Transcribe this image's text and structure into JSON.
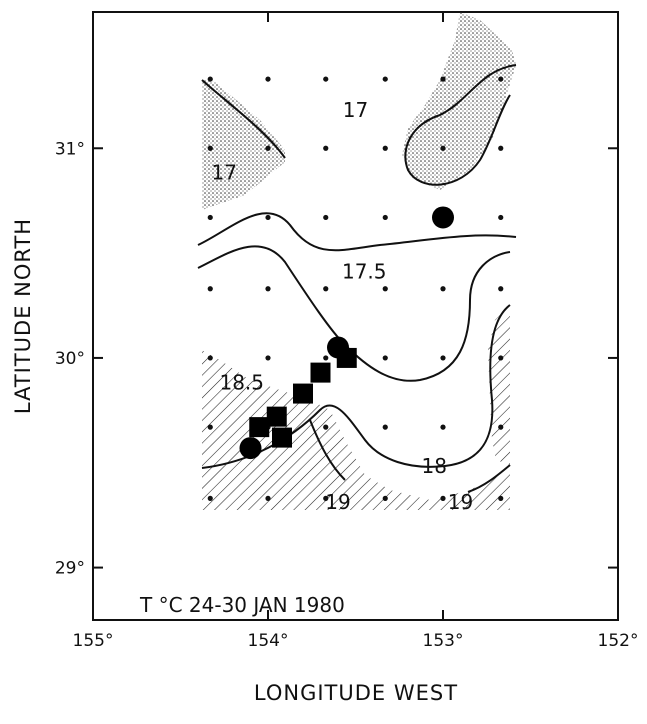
{
  "chart_data": {
    "type": "contour-map",
    "annotation": "T °C 24-30 JAN 1980",
    "xlabel": "LONGITUDE WEST",
    "ylabel": "LATITUDE NORTH",
    "xlim": [
      155,
      152
    ],
    "ylim": [
      28.75,
      31.65
    ],
    "x_ticks": [
      {
        "value": 155,
        "label": "155°"
      },
      {
        "value": 154,
        "label": "154°"
      },
      {
        "value": 153,
        "label": "153°"
      },
      {
        "value": 152,
        "label": "152°"
      }
    ],
    "y_ticks": [
      {
        "value": 31,
        "label": "31°"
      },
      {
        "value": 30,
        "label": "30°"
      },
      {
        "value": 29,
        "label": "29°"
      }
    ],
    "station_lons": [
      154.33,
      154.0,
      153.67,
      153.33,
      153.0,
      152.67
    ],
    "station_lats": [
      31.33,
      31.0,
      30.67,
      30.33,
      30.0,
      29.67,
      29.33
    ],
    "contours": [
      {
        "value": "17",
        "label": "17",
        "points": [
          [
            154.35,
            30.57
          ],
          [
            154.1,
            30.7
          ],
          [
            153.95,
            30.67
          ],
          [
            153.8,
            30.45
          ],
          [
            153.6,
            30.4
          ],
          [
            153.4,
            30.35
          ],
          [
            153.2,
            30.45
          ],
          [
            153.0,
            30.55
          ],
          [
            152.8,
            30.6
          ],
          [
            152.63,
            30.62
          ]
        ]
      },
      {
        "value": "17",
        "label": "17",
        "points": [
          [
            154.33,
            31.35
          ],
          [
            154.2,
            31.25
          ],
          [
            154.1,
            31.1
          ],
          [
            154.05,
            30.97
          ]
        ]
      },
      {
        "value": "17",
        "label": "17",
        "points": [
          [
            152.65,
            31.4
          ],
          [
            152.8,
            31.25
          ],
          [
            153.0,
            31.1
          ],
          [
            153.15,
            31.05
          ],
          [
            153.1,
            30.93
          ],
          [
            152.9,
            30.9
          ],
          [
            152.75,
            30.93
          ]
        ]
      },
      {
        "value": "17.5",
        "label": "17.5",
        "points": [
          [
            154.35,
            30.47
          ],
          [
            154.1,
            30.6
          ],
          [
            153.95,
            30.55
          ],
          [
            153.8,
            30.3
          ],
          [
            153.7,
            30.1
          ],
          [
            153.55,
            29.92
          ],
          [
            153.45,
            29.7
          ],
          [
            153.3,
            29.55
          ],
          [
            153.05,
            29.52
          ],
          [
            152.9,
            29.6
          ],
          [
            152.85,
            29.8
          ],
          [
            152.9,
            30.1
          ],
          [
            152.85,
            30.3
          ],
          [
            152.7,
            30.6
          ]
        ]
      },
      {
        "value": "18",
        "label": "18",
        "points": [
          [
            154.35,
            29.55
          ],
          [
            154.15,
            29.6
          ],
          [
            153.95,
            29.75
          ],
          [
            153.8,
            29.85
          ],
          [
            153.65,
            29.92
          ],
          [
            153.55,
            29.8
          ],
          [
            153.4,
            29.55
          ],
          [
            153.2,
            29.45
          ],
          [
            152.95,
            29.45
          ],
          [
            152.8,
            29.52
          ],
          [
            152.75,
            29.7
          ],
          [
            152.75,
            29.9
          ],
          [
            152.7,
            30.15
          ]
        ]
      },
      {
        "value": "18.5",
        "label": "18.5",
        "points": []
      },
      {
        "value": "19",
        "label": "19",
        "points": [
          [
            153.75,
            29.8
          ],
          [
            153.7,
            29.5
          ],
          [
            153.68,
            29.4
          ]
        ]
      }
    ],
    "contour_labels": [
      {
        "text": "17",
        "lon": 153.5,
        "lat": 31.15
      },
      {
        "text": "17",
        "lon": 154.25,
        "lat": 30.85
      },
      {
        "text": "17.5",
        "lon": 153.45,
        "lat": 30.38
      },
      {
        "text": "18.5",
        "lon": 154.15,
        "lat": 29.85
      },
      {
        "text": "18",
        "lon": 153.05,
        "lat": 29.45
      },
      {
        "text": "19",
        "lon": 153.6,
        "lat": 29.28
      },
      {
        "text": "19",
        "lon": 152.9,
        "lat": 29.28
      }
    ],
    "circles": [
      {
        "lon": 153.0,
        "lat": 30.67
      },
      {
        "lon": 153.6,
        "lat": 30.05
      },
      {
        "lon": 154.1,
        "lat": 29.57
      }
    ],
    "squares": [
      {
        "lon": 153.55,
        "lat": 30.0
      },
      {
        "lon": 153.7,
        "lat": 29.93
      },
      {
        "lon": 153.8,
        "lat": 29.83
      },
      {
        "lon": 153.95,
        "lat": 29.72
      },
      {
        "lon": 154.05,
        "lat": 29.67
      },
      {
        "lon": 153.92,
        "lat": 29.62
      }
    ]
  }
}
